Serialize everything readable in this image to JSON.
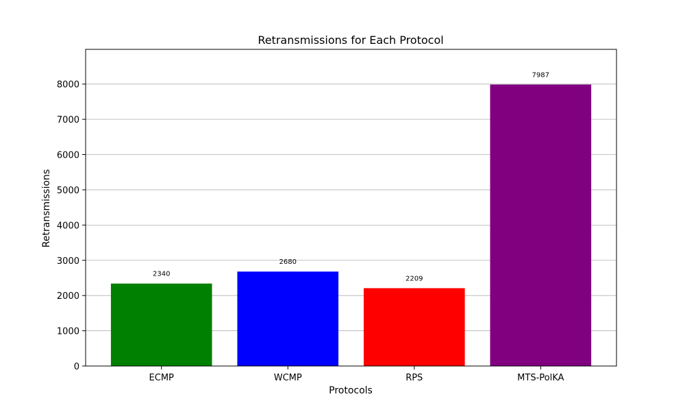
{
  "chart_data": {
    "type": "bar",
    "title": "Retransmissions for Each Protocol",
    "xlabel": "Protocols",
    "ylabel": "Retransmissions",
    "categories": [
      "ECMP",
      "WCMP",
      "RPS",
      "MTS-PolKA"
    ],
    "values": [
      2340,
      2680,
      2209,
      7987
    ],
    "data_labels": [
      "2340",
      "2680",
      "2209",
      "7987"
    ],
    "colors": [
      "#008000",
      "#0000ff",
      "#ff0000",
      "#800080"
    ],
    "ylim": [
      0,
      8986
    ],
    "yticks": [
      0,
      1000,
      2000,
      3000,
      4000,
      5000,
      6000,
      7000,
      8000
    ],
    "ytick_labels": [
      "0",
      "1000",
      "2000",
      "3000",
      "4000",
      "5000",
      "6000",
      "7000",
      "8000"
    ],
    "grid": "y-major",
    "legend": "none"
  }
}
